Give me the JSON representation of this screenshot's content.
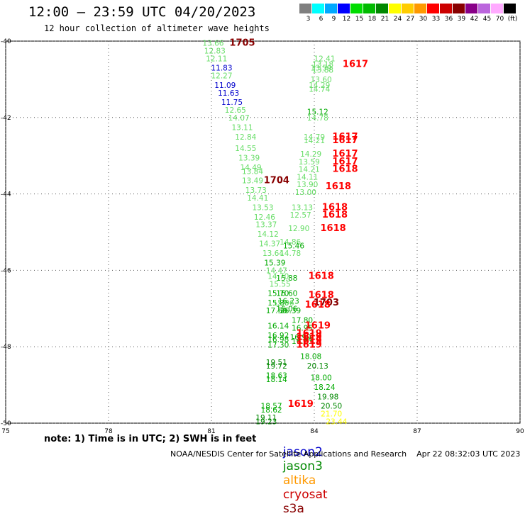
{
  "title": "12:00 — 23:59 UTC 04/20/2023",
  "subtitle": "12 hour collection of altimeter wave heights",
  "colorbar": {
    "colors": [
      "#7f7f7f",
      "#00ffff",
      "#00a8ff",
      "#0000ff",
      "#00dd00",
      "#00bb00",
      "#008800",
      "#ffff00",
      "#ffcc00",
      "#ff9900",
      "#ff0000",
      "#cc0000",
      "#880000",
      "#880088",
      "#bb66dd",
      "#ffaaff",
      "#000000"
    ],
    "labels": [
      "3",
      "6",
      "9",
      "12",
      "15",
      "18",
      "21",
      "24",
      "27",
      "30",
      "33",
      "36",
      "39",
      "42",
      "45",
      "70",
      "(ft)"
    ]
  },
  "chart_data": {
    "type": "scatter",
    "title": "12:00 — 23:59 UTC 04/20/2023",
    "subtitle": "12 hour collection of altimeter wave heights",
    "xlim": [
      75,
      90
    ],
    "ylim": [
      -50,
      -40
    ],
    "x_ticks": [
      "75",
      "78",
      "81",
      "84",
      "87",
      "90"
    ],
    "y_ticks": [
      "-40",
      "-42",
      "-44",
      "-46",
      "-48",
      "-50"
    ],
    "grid": "dotted",
    "points": [
      {
        "x": 81.05,
        "y": -40.05,
        "v": "13.66",
        "c": "#66dd66"
      },
      {
        "x": 81.1,
        "y": -40.25,
        "v": "12.83",
        "c": "#66dd66"
      },
      {
        "x": 81.15,
        "y": -40.45,
        "v": "12.11",
        "c": "#66dd66"
      },
      {
        "x": 81.3,
        "y": -40.7,
        "v": "11.83",
        "c": "#0000cc"
      },
      {
        "x": 81.3,
        "y": -40.9,
        "v": "12.27",
        "c": "#66dd66"
      },
      {
        "x": 81.4,
        "y": -41.15,
        "v": "11.09",
        "c": "#0000cc"
      },
      {
        "x": 81.5,
        "y": -41.35,
        "v": "11.63",
        "c": "#0000cc"
      },
      {
        "x": 81.6,
        "y": -41.6,
        "v": "11.75",
        "c": "#0000cc"
      },
      {
        "x": 81.7,
        "y": -41.8,
        "v": "12.65",
        "c": "#66dd66"
      },
      {
        "x": 81.8,
        "y": -42.0,
        "v": "14.07",
        "c": "#66dd66"
      },
      {
        "x": 81.9,
        "y": -42.25,
        "v": "13.11",
        "c": "#66dd66"
      },
      {
        "x": 82.0,
        "y": -42.5,
        "v": "12.84",
        "c": "#66dd66"
      },
      {
        "x": 82.0,
        "y": -42.8,
        "v": "14.55",
        "c": "#66dd66"
      },
      {
        "x": 82.1,
        "y": -43.05,
        "v": "13.39",
        "c": "#66dd66"
      },
      {
        "x": 82.15,
        "y": -43.3,
        "v": "14.49",
        "c": "#66dd66"
      },
      {
        "x": 82.2,
        "y": -43.4,
        "v": "13.84",
        "c": "#66dd66"
      },
      {
        "x": 82.2,
        "y": -43.65,
        "v": "13.49",
        "c": "#66dd66"
      },
      {
        "x": 82.3,
        "y": -43.9,
        "v": "13.73",
        "c": "#66dd66"
      },
      {
        "x": 82.35,
        "y": -44.1,
        "v": "14.41",
        "c": "#66dd66"
      },
      {
        "x": 82.5,
        "y": -44.35,
        "v": "13.53",
        "c": "#66dd66"
      },
      {
        "x": 82.55,
        "y": -44.6,
        "v": "12.46",
        "c": "#66dd66"
      },
      {
        "x": 82.6,
        "y": -44.8,
        "v": "13.37",
        "c": "#66dd66"
      },
      {
        "x": 82.65,
        "y": -45.05,
        "v": "14.12",
        "c": "#66dd66"
      },
      {
        "x": 82.7,
        "y": -45.3,
        "v": "14.37",
        "c": "#66dd66"
      },
      {
        "x": 83.3,
        "y": -45.25,
        "v": "14.86",
        "c": "#66dd66"
      },
      {
        "x": 83.4,
        "y": -45.35,
        "v": "15.46",
        "c": "#00aa00"
      },
      {
        "x": 82.8,
        "y": -45.55,
        "v": "13.64",
        "c": "#66dd66"
      },
      {
        "x": 83.3,
        "y": -45.55,
        "v": "14.78",
        "c": "#66dd66"
      },
      {
        "x": 82.85,
        "y": -45.8,
        "v": "15.39",
        "c": "#00aa00"
      },
      {
        "x": 82.9,
        "y": -46.0,
        "v": "14.47",
        "c": "#66dd66"
      },
      {
        "x": 82.95,
        "y": -46.15,
        "v": "14.70",
        "c": "#66dd66"
      },
      {
        "x": 83.2,
        "y": -46.2,
        "v": "15.88",
        "c": "#00aa00"
      },
      {
        "x": 83.0,
        "y": -46.35,
        "v": "15.55",
        "c": "#66dd66"
      },
      {
        "x": 82.95,
        "y": -46.6,
        "v": "15.70",
        "c": "#00aa00"
      },
      {
        "x": 83.2,
        "y": -46.6,
        "v": "16.60",
        "c": "#00aa00"
      },
      {
        "x": 82.95,
        "y": -46.85,
        "v": "15.86",
        "c": "#00aa00"
      },
      {
        "x": 83.25,
        "y": -46.8,
        "v": "16.23",
        "c": "#00aa00"
      },
      {
        "x": 83.1,
        "y": -46.85,
        "v": "15.06",
        "c": "#66dd66"
      },
      {
        "x": 82.9,
        "y": -47.05,
        "v": "17.50",
        "c": "#00aa00"
      },
      {
        "x": 83.3,
        "y": -47.05,
        "v": "16.39",
        "c": "#00aa00"
      },
      {
        "x": 83.2,
        "y": -47.0,
        "v": "16.06",
        "c": "#00aa00"
      },
      {
        "x": 83.65,
        "y": -47.3,
        "v": "17.80",
        "c": "#00aa00"
      },
      {
        "x": 82.95,
        "y": -47.45,
        "v": "16.14",
        "c": "#00aa00"
      },
      {
        "x": 83.65,
        "y": -47.5,
        "v": "16.95",
        "c": "#00aa00"
      },
      {
        "x": 82.95,
        "y": -47.7,
        "v": "16.92",
        "c": "#00aa00"
      },
      {
        "x": 83.6,
        "y": -47.75,
        "v": "16.99",
        "c": "#00aa00"
      },
      {
        "x": 82.95,
        "y": -47.8,
        "v": "16.98",
        "c": "#00aa00"
      },
      {
        "x": 82.95,
        "y": -47.95,
        "v": "17.30",
        "c": "#00aa00"
      },
      {
        "x": 83.65,
        "y": -47.85,
        "v": "16.63",
        "c": "#00aa00"
      },
      {
        "x": 83.9,
        "y": -48.25,
        "v": "18.08",
        "c": "#00aa00"
      },
      {
        "x": 82.9,
        "y": -48.4,
        "v": "19.51",
        "c": "#008800"
      },
      {
        "x": 82.9,
        "y": -48.5,
        "v": "19.72",
        "c": "#008800"
      },
      {
        "x": 84.1,
        "y": -48.5,
        "v": "20.13",
        "c": "#008800"
      },
      {
        "x": 82.9,
        "y": -48.75,
        "v": "18.63",
        "c": "#00aa00"
      },
      {
        "x": 82.9,
        "y": -48.85,
        "v": "18.14",
        "c": "#00aa00"
      },
      {
        "x": 84.2,
        "y": -48.8,
        "v": "18.00",
        "c": "#00aa00"
      },
      {
        "x": 84.3,
        "y": -49.05,
        "v": "18.24",
        "c": "#00aa00"
      },
      {
        "x": 84.4,
        "y": -49.3,
        "v": "19.98",
        "c": "#008800"
      },
      {
        "x": 84.5,
        "y": -49.55,
        "v": "20.50",
        "c": "#008800"
      },
      {
        "x": 82.75,
        "y": -49.55,
        "v": "18.57",
        "c": "#00aa00"
      },
      {
        "x": 82.75,
        "y": -49.65,
        "v": "18.62",
        "c": "#00aa00"
      },
      {
        "x": 84.5,
        "y": -49.75,
        "v": "21.70",
        "c": "#ffff00"
      },
      {
        "x": 82.6,
        "y": -49.85,
        "v": "19.11",
        "c": "#008800"
      },
      {
        "x": 82.6,
        "y": -49.95,
        "v": "19.23",
        "c": "#008800"
      },
      {
        "x": 84.65,
        "y": -49.95,
        "v": "23.44",
        "c": "#ffff00"
      },
      {
        "x": 84.3,
        "y": -40.45,
        "v": "12.41",
        "c": "#66dd66"
      },
      {
        "x": 84.25,
        "y": -40.6,
        "v": "13.18",
        "c": "#66dd66"
      },
      {
        "x": 84.25,
        "y": -40.75,
        "v": "13.88",
        "c": "#66dd66"
      },
      {
        "x": 84.2,
        "y": -40.7,
        "v": "13.59",
        "c": "#66dd66"
      },
      {
        "x": 84.2,
        "y": -41.0,
        "v": "13.60",
        "c": "#66dd66"
      },
      {
        "x": 84.15,
        "y": -41.15,
        "v": "14.29",
        "c": "#66dd66"
      },
      {
        "x": 84.15,
        "y": -41.25,
        "v": "14.74",
        "c": "#66dd66"
      },
      {
        "x": 84.1,
        "y": -41.85,
        "v": "15.12",
        "c": "#00aa00"
      },
      {
        "x": 84.1,
        "y": -42.0,
        "v": "14.78",
        "c": "#66dd66"
      },
      {
        "x": 84.0,
        "y": -42.5,
        "v": "14.79",
        "c": "#66dd66"
      },
      {
        "x": 84.0,
        "y": -42.6,
        "v": "14.21",
        "c": "#66dd66"
      },
      {
        "x": 83.9,
        "y": -42.95,
        "v": "14.29",
        "c": "#66dd66"
      },
      {
        "x": 83.85,
        "y": -43.15,
        "v": "13.59",
        "c": "#66dd66"
      },
      {
        "x": 83.85,
        "y": -43.35,
        "v": "14.21",
        "c": "#66dd66"
      },
      {
        "x": 83.8,
        "y": -43.55,
        "v": "14.11",
        "c": "#66dd66"
      },
      {
        "x": 83.8,
        "y": -43.75,
        "v": "13.90",
        "c": "#66dd66"
      },
      {
        "x": 83.75,
        "y": -43.95,
        "v": "13.00",
        "c": "#66dd66"
      },
      {
        "x": 83.65,
        "y": -44.35,
        "v": "13.13",
        "c": "#66dd66"
      },
      {
        "x": 83.6,
        "y": -44.55,
        "v": "12.57",
        "c": "#66dd66"
      },
      {
        "x": 83.55,
        "y": -44.9,
        "v": "12.90",
        "c": "#66dd66"
      },
      {
        "x": 81.9,
        "y": -40.05,
        "v": "1705",
        "c": "#880000"
      },
      {
        "x": 85.2,
        "y": -40.6,
        "v": "1617",
        "c": "#ff0000"
      },
      {
        "x": 84.9,
        "y": -42.5,
        "v": "1617",
        "c": "#ff0000"
      },
      {
        "x": 84.9,
        "y": -42.6,
        "v": "1617",
        "c": "#ff0000"
      },
      {
        "x": 84.9,
        "y": -42.95,
        "v": "1617",
        "c": "#ff0000"
      },
      {
        "x": 84.9,
        "y": -43.15,
        "v": "1617",
        "c": "#ff0000"
      },
      {
        "x": 84.9,
        "y": -43.35,
        "v": "1618",
        "c": "#ff0000"
      },
      {
        "x": 82.9,
        "y": -43.65,
        "v": "1704",
        "c": "#880000"
      },
      {
        "x": 84.7,
        "y": -43.8,
        "v": "1618",
        "c": "#ff0000"
      },
      {
        "x": 84.6,
        "y": -44.35,
        "v": "1618",
        "c": "#ff0000"
      },
      {
        "x": 84.6,
        "y": -44.55,
        "v": "1618",
        "c": "#ff0000"
      },
      {
        "x": 84.55,
        "y": -44.9,
        "v": "1618",
        "c": "#ff0000"
      },
      {
        "x": 84.2,
        "y": -46.15,
        "v": "1618",
        "c": "#ff0000"
      },
      {
        "x": 84.2,
        "y": -46.65,
        "v": "1618",
        "c": "#ff0000"
      },
      {
        "x": 84.35,
        "y": -46.85,
        "v": "1703",
        "c": "#880000"
      },
      {
        "x": 84.1,
        "y": -46.9,
        "v": "1618",
        "c": "#ff0000"
      },
      {
        "x": 84.1,
        "y": -47.45,
        "v": "1619",
        "c": "#ff0000"
      },
      {
        "x": 83.85,
        "y": -47.65,
        "v": "1619",
        "c": "#ff0000"
      },
      {
        "x": 83.85,
        "y": -47.75,
        "v": "1619",
        "c": "#ff0000"
      },
      {
        "x": 83.85,
        "y": -47.85,
        "v": "1619",
        "c": "#ff0000"
      },
      {
        "x": 83.85,
        "y": -47.95,
        "v": "1619",
        "c": "#ff0000"
      },
      {
        "x": 83.6,
        "y": -49.5,
        "v": "1619",
        "c": "#ff0000"
      }
    ]
  },
  "note": "note: 1) Time is in UTC; 2) SWH is in feet",
  "satellites": [
    {
      "name": "jason2",
      "color": "#0000cc"
    },
    {
      "name": "jason3",
      "color": "#008800"
    },
    {
      "name": "altika",
      "color": "#ff9900"
    },
    {
      "name": "cryosat",
      "color": "#cc0000"
    },
    {
      "name": "s3a",
      "color": "#880000"
    }
  ],
  "credit": "NOAA/NESDIS Center for Satellite Applications and Research    Apr 22 08:32:03 UTC 2023"
}
